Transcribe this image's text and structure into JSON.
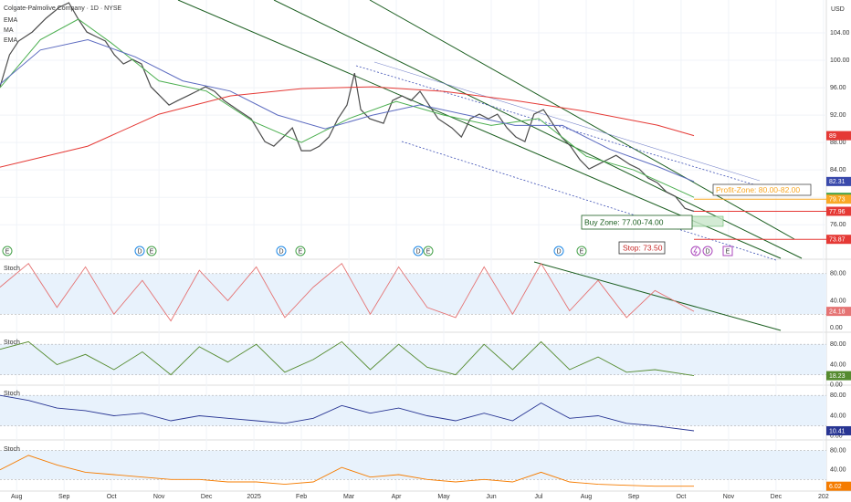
{
  "header": {
    "title": "Colgate-Palmolive Company · 1D · NYSE",
    "indicators": [
      "EMA",
      "MA",
      "EMA"
    ],
    "currency": "USD",
    "events": [
      "E",
      "D",
      "E",
      "D",
      "E",
      "D",
      "E",
      "D",
      "E",
      "D",
      "E"
    ]
  },
  "annotations": {
    "profit": "Profit-Zone: 80.00-82.00",
    "buy": "Buy Zone: 77.00-74.00",
    "stop": "Stop: 73.50"
  },
  "chart_data": [
    {
      "type": "line",
      "xlim": [
        -0.35,
        17.06
      ],
      "ylim": [
        71.1,
        108.8
      ],
      "xticks": [
        {
          "value": 0,
          "label": "Aug"
        },
        {
          "value": 1,
          "label": "Sep"
        },
        {
          "value": 2,
          "label": "Oct"
        },
        {
          "value": 3,
          "label": "Nov"
        },
        {
          "value": 4,
          "label": "Dec"
        },
        {
          "value": 5,
          "label": "2025"
        },
        {
          "value": 6,
          "label": "Feb"
        },
        {
          "value": 7,
          "label": "Mar"
        },
        {
          "value": 8,
          "label": "Apr"
        },
        {
          "value": 9,
          "label": "May"
        },
        {
          "value": 10,
          "label": "Jun"
        },
        {
          "value": 11,
          "label": "Jul"
        },
        {
          "value": 12,
          "label": "Aug"
        },
        {
          "value": 13,
          "label": "Sep"
        },
        {
          "value": 14,
          "label": "Oct"
        },
        {
          "value": 15,
          "label": "Nov"
        },
        {
          "value": 16,
          "label": "Dec"
        },
        {
          "value": 17,
          "label": "202"
        }
      ],
      "yticks": [
        {
          "value": 104,
          "label": "104.00"
        },
        {
          "value": 100,
          "label": "100.00"
        },
        {
          "value": 96,
          "label": "96.00"
        },
        {
          "value": 92,
          "label": "92.00"
        },
        {
          "value": 88,
          "label": "88.00"
        },
        {
          "value": 84,
          "label": "84.00"
        },
        {
          "value": 80,
          "label": "80.00"
        },
        {
          "value": 76,
          "label": "76.00"
        }
      ],
      "series": [
        {
          "color": "#4d4d4d",
          "x": [
            -0.35,
            -0.15,
            0.04,
            0.33,
            0.62,
            0.9,
            1.1,
            1.29,
            1.48,
            1.67,
            1.87,
            2.06,
            2.25,
            2.44,
            2.63,
            2.83,
            3.02,
            3.21,
            3.4,
            3.6,
            3.79,
            3.98,
            4.17,
            4.37,
            4.65,
            4.94,
            5.23,
            5.42,
            5.62,
            5.81,
            6,
            6.19,
            6.38,
            6.58,
            6.77,
            6.96,
            7.12,
            7.25,
            7.44,
            7.73,
            7.92,
            8.12,
            8.31,
            8.5,
            8.69,
            8.88,
            9.17,
            9.37,
            9.56,
            9.75,
            9.94,
            10.13,
            10.33,
            10.52,
            10.71,
            10.9,
            11.1,
            11.29,
            11.48,
            11.67,
            11.87,
            12.06,
            12.25,
            12.44,
            12.63,
            12.92,
            13.12,
            13.31,
            13.5,
            13.69,
            13.88,
            14.08,
            14.27
          ],
          "values": [
            96.13,
            100.8,
            102.8,
            104.13,
            106.13,
            107.73,
            108.4,
            106.13,
            104.13,
            103.47,
            102.8,
            100.8,
            99.47,
            100.13,
            99.47,
            96.13,
            94.8,
            93.47,
            94.13,
            94.8,
            95.47,
            96.13,
            95.47,
            94.13,
            92.8,
            91.47,
            88.13,
            87.47,
            88.8,
            90.13,
            86.8,
            86.8,
            87.47,
            88.8,
            91.47,
            93.47,
            98.13,
            92.8,
            91.47,
            90.8,
            94.13,
            94.8,
            94.13,
            95.47,
            93.47,
            91.47,
            90.13,
            88.8,
            91.47,
            92.13,
            91.47,
            92.13,
            90.13,
            88.8,
            88.13,
            92.13,
            92.8,
            90.8,
            88.8,
            87.47,
            85.47,
            84.13,
            84.8,
            85.47,
            86.13,
            84.8,
            84.13,
            82.8,
            82.13,
            80.8,
            80.13,
            78.4,
            77.96
          ]
        },
        {
          "color": "#4caf50",
          "x": [
            -0.35,
            0.5,
            1.3,
            2,
            3,
            4,
            5,
            6,
            7,
            8,
            9,
            10,
            11,
            12,
            13,
            14.27
          ],
          "values": [
            96,
            103,
            106,
            102.5,
            97,
            95.5,
            91,
            88,
            91.5,
            94,
            92,
            90.5,
            91.5,
            86,
            84,
            80
          ]
        },
        {
          "color": "#5c6bc0",
          "x": [
            -0.35,
            0.5,
            1.5,
            2.5,
            3.5,
            4.5,
            5.5,
            6.5,
            7.5,
            8.5,
            9.5,
            10.5,
            11.5,
            12.5,
            13.5,
            14.27
          ],
          "values": [
            96.5,
            101.5,
            103,
            100.5,
            97,
            95.5,
            92,
            90,
            92,
            93.5,
            92,
            90.5,
            90.5,
            87,
            84.5,
            82.31
          ]
        },
        {
          "color": "#e53935",
          "x": [
            -0.35,
            1.5,
            3,
            4.5,
            6,
            7.5,
            9,
            10.5,
            12,
            13.5,
            14.27
          ],
          "values": [
            84.4,
            87.47,
            92.13,
            94.8,
            95.87,
            96.13,
            95.47,
            94.13,
            92.53,
            90.53,
            89
          ]
        }
      ],
      "price_tags": {
        "values": [
          89,
          82.31,
          80,
          79.73,
          77.96,
          73.87
        ],
        "colors": [
          "#e53935",
          "#3949ab",
          "#43a047",
          "#f9a825",
          "#e53935",
          "#e53935"
        ]
      }
    },
    {
      "type": "stoch",
      "title": "Stoch",
      "color": "#e57373",
      "xlim": [
        -0.35,
        17.06
      ],
      "ylim": [
        -4,
        100
      ],
      "band": [
        20,
        80
      ],
      "yticks": [
        {
          "value": 80,
          "label": "80.00"
        },
        {
          "value": 40,
          "label": "40.00"
        },
        {
          "value": 0,
          "label": "0.00"
        }
      ],
      "x": [
        -0.35,
        0.25,
        0.85,
        1.45,
        2.05,
        2.65,
        3.25,
        3.85,
        4.45,
        5.05,
        5.65,
        6.25,
        6.85,
        7.45,
        8.05,
        8.65,
        9.25,
        9.85,
        10.45,
        11.05,
        11.65,
        12.25,
        12.85,
        13.45,
        14.27
      ],
      "values": [
        60,
        95,
        30,
        90,
        20,
        70,
        10,
        85,
        40,
        90,
        15,
        60,
        95,
        20,
        90,
        30,
        15,
        90,
        20,
        95,
        25,
        70,
        15,
        55,
        24.18
      ]
    },
    {
      "type": "stoch",
      "title": "Stoch",
      "color": "#558b2f",
      "xlim": [
        -0.35,
        17.06
      ],
      "ylim": [
        -4,
        100
      ],
      "band": [
        20,
        80
      ],
      "yticks": [
        {
          "value": 80,
          "label": "80.00"
        },
        {
          "value": 40,
          "label": "40.00"
        },
        {
          "value": 0,
          "label": "0.00"
        }
      ],
      "x": [
        -0.35,
        0.25,
        0.85,
        1.45,
        2.05,
        2.65,
        3.25,
        3.85,
        4.45,
        5.05,
        5.65,
        6.25,
        6.85,
        7.45,
        8.05,
        8.65,
        9.25,
        9.85,
        10.45,
        11.05,
        11.65,
        12.25,
        12.85,
        13.45,
        14.27
      ],
      "values": [
        70,
        85,
        40,
        60,
        30,
        65,
        20,
        75,
        45,
        80,
        25,
        50,
        85,
        30,
        80,
        35,
        20,
        80,
        30,
        85,
        30,
        55,
        25,
        30,
        18.23
      ]
    },
    {
      "type": "stoch",
      "title": "Stoch",
      "color": "#283593",
      "xlim": [
        -0.35,
        17.06
      ],
      "ylim": [
        -4,
        100
      ],
      "band": [
        20,
        80
      ],
      "yticks": [
        {
          "value": 80,
          "label": "80.00"
        },
        {
          "value": 40,
          "label": "40.00"
        },
        {
          "value": 0,
          "label": "0.00"
        }
      ],
      "x": [
        -0.35,
        0.25,
        0.85,
        1.45,
        2.05,
        2.65,
        3.25,
        3.85,
        4.45,
        5.05,
        5.65,
        6.25,
        6.85,
        7.45,
        8.05,
        8.65,
        9.25,
        9.85,
        10.45,
        11.05,
        11.65,
        12.25,
        12.85,
        13.45,
        14.27
      ],
      "values": [
        80,
        70,
        55,
        50,
        40,
        45,
        30,
        40,
        35,
        30,
        25,
        35,
        60,
        45,
        55,
        40,
        30,
        45,
        30,
        65,
        35,
        40,
        25,
        20,
        10.41
      ]
    },
    {
      "type": "stoch",
      "title": "Stoch",
      "color": "#f57c00",
      "xlim": [
        -0.35,
        17.06
      ],
      "ylim": [
        -4,
        100
      ],
      "band": [
        20,
        80
      ],
      "yticks": [
        {
          "value": 80,
          "label": "80.00"
        },
        {
          "value": 40,
          "label": "40.00"
        },
        {
          "value": 0,
          "label": "0.00"
        }
      ],
      "x": [
        -0.35,
        0.25,
        0.85,
        1.45,
        2.05,
        2.65,
        3.25,
        3.85,
        4.45,
        5.05,
        5.65,
        6.25,
        6.85,
        7.45,
        8.05,
        8.65,
        9.25,
        9.85,
        10.45,
        11.05,
        11.65,
        12.25,
        12.85,
        13.45,
        14.27
      ],
      "values": [
        40,
        70,
        50,
        35,
        30,
        25,
        20,
        20,
        15,
        15,
        10,
        15,
        45,
        25,
        30,
        20,
        15,
        20,
        15,
        35,
        15,
        10,
        8,
        6,
        6.02
      ]
    }
  ]
}
